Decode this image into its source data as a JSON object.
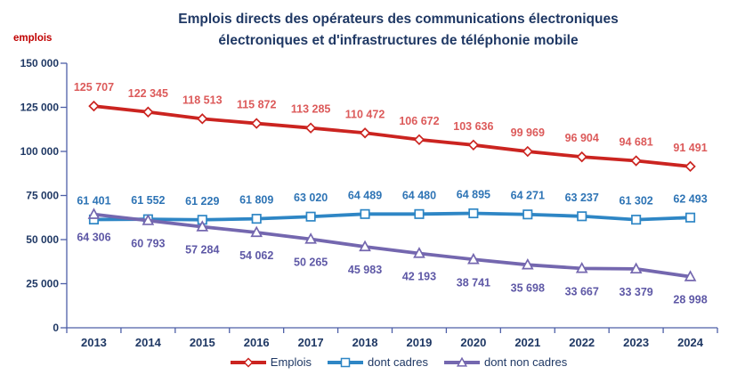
{
  "chart_data": {
    "type": "line",
    "title_lines": [
      "Emplois directs des opérateurs des communications électroniques",
      "électroniques et d'infrastructures de téléphonie mobile"
    ],
    "y_axis_unit_label": "emplois",
    "categories": [
      "2013",
      "2014",
      "2015",
      "2016",
      "2017",
      "2018",
      "2019",
      "2020",
      "2021",
      "2022",
      "2023",
      "2024"
    ],
    "y_ticks": [
      0,
      25000,
      50000,
      75000,
      100000,
      125000,
      150000
    ],
    "ylim": [
      0,
      150000
    ],
    "grid": false,
    "legend_position": "bottom",
    "number_format": "space-thousands",
    "series": [
      {
        "name": "Emplois",
        "marker": "diamond",
        "line_color": "#cb2420",
        "label_color": "#dc5a5a",
        "label_position": "above",
        "values": [
          125707,
          122345,
          118513,
          115872,
          113285,
          110472,
          106672,
          103636,
          99969,
          96904,
          94681,
          91491
        ]
      },
      {
        "name": "dont cadres",
        "marker": "square",
        "line_color": "#2e86c5",
        "label_color": "#2e74b5",
        "label_position": "above",
        "values": [
          61401,
          61552,
          61229,
          61809,
          63020,
          64489,
          64480,
          64895,
          64271,
          63237,
          61302,
          62493
        ]
      },
      {
        "name": "dont non cadres",
        "marker": "triangle",
        "line_color": "#7467af",
        "label_color": "#5e58a6",
        "label_position": "below",
        "values": [
          64306,
          60793,
          57284,
          54062,
          50265,
          45983,
          42193,
          38741,
          35698,
          33667,
          33379,
          28998
        ]
      }
    ]
  },
  "colors": {
    "title_text": "#1f3864",
    "axis_text": "#1f3864",
    "axis_line": "#4d5fa7",
    "unit_label": "#c00000",
    "legend_text": "#1f3864"
  }
}
